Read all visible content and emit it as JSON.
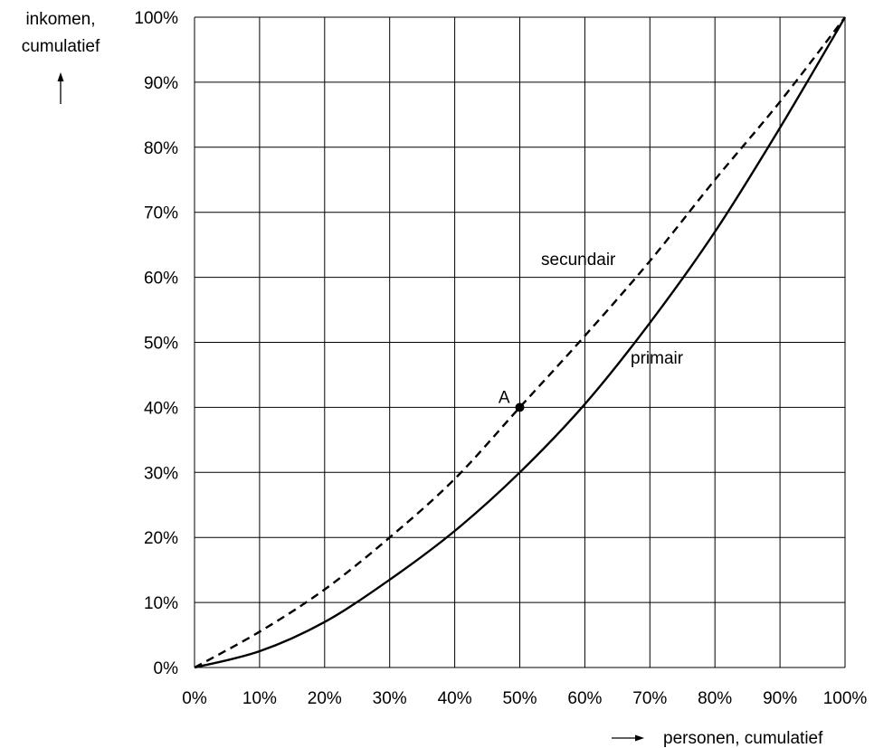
{
  "chart_data": {
    "type": "line",
    "xlabel": "personen, cumulatief",
    "ylabel_lines": [
      "inkomen,",
      "cumulatief"
    ],
    "xlim": [
      0,
      100
    ],
    "ylim": [
      0,
      100
    ],
    "xticks": [
      "0%",
      "10%",
      "20%",
      "30%",
      "40%",
      "50%",
      "60%",
      "70%",
      "80%",
      "90%",
      "100%"
    ],
    "yticks": [
      "0%",
      "10%",
      "20%",
      "30%",
      "40%",
      "50%",
      "60%",
      "70%",
      "80%",
      "90%",
      "100%"
    ],
    "grid": true,
    "series": [
      {
        "name": "secundair",
        "style": "dashed",
        "x": [
          0,
          10,
          20,
          30,
          40,
          50,
          60,
          70,
          80,
          90,
          100
        ],
        "y": [
          0,
          5.5,
          12,
          20,
          29,
          40,
          51,
          62.5,
          75,
          87,
          100
        ]
      },
      {
        "name": "primair",
        "style": "solid",
        "x": [
          0,
          10,
          20,
          30,
          40,
          50,
          60,
          70,
          80,
          90,
          100
        ],
        "y": [
          0,
          2.5,
          7,
          13.5,
          21,
          30,
          40.5,
          53,
          67,
          83,
          100
        ]
      }
    ],
    "annotations": [
      {
        "label": "A",
        "x": 50,
        "y": 40
      }
    ]
  }
}
